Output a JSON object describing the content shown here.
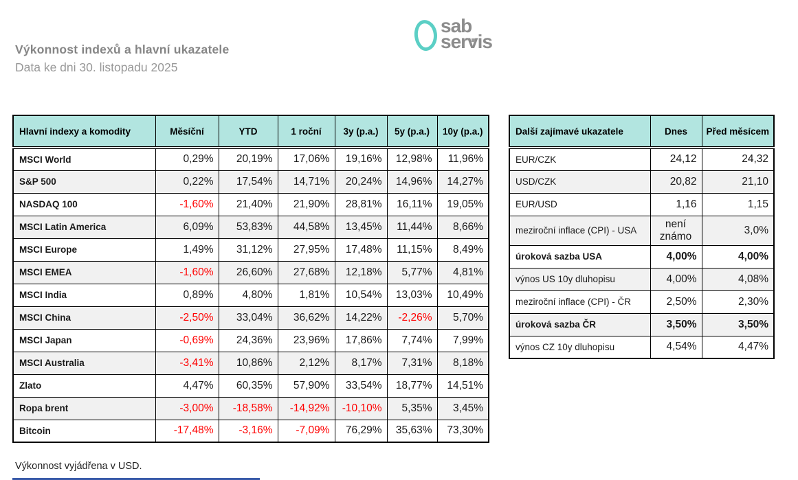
{
  "page": {
    "title": "Výkonnost indexů a hlavní ukazatele",
    "subtitle": "Data ke dni 30. listopadu 2025",
    "footnote": "Výkonnost vyjádřena v USD."
  },
  "logo": {
    "line1": "sab",
    "line2": "servis"
  },
  "colors": {
    "header_bg": "#b2e5e0",
    "alt_row_bg": "#f1f1f1",
    "negative_value": "#ff0000",
    "logo_teal": "#5bcfc5",
    "logo_gray": "#8c8c8c",
    "bottom_line_blue": "#3a5ba9"
  },
  "indices_table": {
    "headers": [
      "Hlavní indexy a komodity",
      "Měsíční",
      "YTD",
      "1 roční",
      "3y (p.a.)",
      "5y (p.a.)",
      "10y (p.a.)"
    ],
    "rows": [
      {
        "label": "MSCI World",
        "values": [
          "0,29%",
          "20,19%",
          "17,06%",
          "19,16%",
          "12,98%",
          "11,96%"
        ]
      },
      {
        "label": "S&P 500",
        "values": [
          "0,22%",
          "17,54%",
          "14,71%",
          "20,24%",
          "14,96%",
          "14,27%"
        ]
      },
      {
        "label": "NASDAQ 100",
        "values": [
          "-1,60%",
          "21,40%",
          "21,90%",
          "28,81%",
          "16,11%",
          "19,05%"
        ]
      },
      {
        "label": "MSCI Latin America",
        "values": [
          "6,09%",
          "53,83%",
          "44,58%",
          "13,45%",
          "11,44%",
          "8,66%"
        ]
      },
      {
        "label": "MSCI Europe",
        "values": [
          "1,49%",
          "31,12%",
          "27,95%",
          "17,48%",
          "11,15%",
          "8,49%"
        ]
      },
      {
        "label": "MSCI EMEA",
        "values": [
          "-1,60%",
          "26,60%",
          "27,68%",
          "12,18%",
          "5,77%",
          "4,81%"
        ]
      },
      {
        "label": "MSCI India",
        "values": [
          "0,89%",
          "4,80%",
          "1,81%",
          "10,54%",
          "13,03%",
          "10,49%"
        ]
      },
      {
        "label": "MSCI China",
        "values": [
          "-2,50%",
          "33,04%",
          "36,62%",
          "14,22%",
          "-2,26%",
          "5,70%"
        ]
      },
      {
        "label": "MSCI Japan",
        "values": [
          "-0,69%",
          "24,36%",
          "23,96%",
          "17,86%",
          "7,74%",
          "7,99%"
        ]
      },
      {
        "label": "MSCI Australia",
        "values": [
          "-3,41%",
          "10,86%",
          "2,12%",
          "8,17%",
          "7,31%",
          "8,18%"
        ]
      },
      {
        "label": "Zlato",
        "values": [
          "4,47%",
          "60,35%",
          "57,90%",
          "33,54%",
          "18,77%",
          "14,51%"
        ]
      },
      {
        "label": "Ropa brent",
        "values": [
          "-3,00%",
          "-18,58%",
          "-14,92%",
          "-10,10%",
          "5,35%",
          "3,45%"
        ]
      },
      {
        "label": "Bitcoin",
        "values": [
          "-17,48%",
          "-3,16%",
          "-7,09%",
          "76,29%",
          "35,63%",
          "73,30%"
        ]
      }
    ]
  },
  "indicators_table": {
    "headers": [
      "Další zajímavé ukazatele",
      "Dnes",
      "Před měsícem"
    ],
    "rows": [
      {
        "label": "EUR/CZK",
        "values": [
          "24,12",
          "24,32"
        ]
      },
      {
        "label": "USD/CZK",
        "values": [
          "20,82",
          "21,10"
        ]
      },
      {
        "label": "EUR/USD",
        "values": [
          "1,16",
          "1,15"
        ]
      },
      {
        "label": "meziroční inflace (CPI) - USA",
        "values": [
          "není známo",
          "3,0%"
        ],
        "tall": true
      },
      {
        "label": "úroková sazba USA",
        "values": [
          "4,00%",
          "4,00%"
        ],
        "bold": true
      },
      {
        "label": "výnos US 10y dluhopisu",
        "values": [
          "4,00%",
          "4,08%"
        ]
      },
      {
        "label": "meziroční inflace (CPI) - ČR",
        "values": [
          "2,50%",
          "2,30%"
        ]
      },
      {
        "label": "úroková sazba ČR",
        "values": [
          "3,50%",
          "3,50%"
        ],
        "bold": true
      },
      {
        "label": "výnos CZ 10y dluhopisu",
        "values": [
          "4,54%",
          "4,47%"
        ]
      }
    ]
  }
}
